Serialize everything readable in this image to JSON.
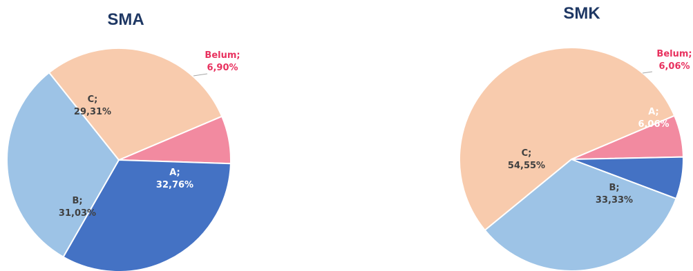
{
  "chart_data": [
    {
      "type": "pie",
      "title": "SMA",
      "slices": [
        {
          "label": "Belum",
          "display": "6,90%",
          "value": 6.9,
          "color": "#f28aa0",
          "label_color": "#e8325f"
        },
        {
          "label": "A",
          "display": "32,76%",
          "value": 32.76,
          "color": "#4472c4",
          "label_color": "#ffffff"
        },
        {
          "label": "B",
          "display": "31,03%",
          "value": 31.03,
          "color": "#9dc3e6",
          "label_color": "#404040"
        },
        {
          "label": "C",
          "display": "29,31%",
          "value": 29.31,
          "color": "#f8cbad",
          "label_color": "#404040"
        }
      ]
    },
    {
      "type": "pie",
      "title": "SMK",
      "slices": [
        {
          "label": "Belum",
          "display": "6,06%",
          "value": 6.06,
          "color": "#f28aa0",
          "label_color": "#e8325f"
        },
        {
          "label": "A",
          "display": "6,06%",
          "value": 6.06,
          "color": "#4472c4",
          "label_color": "#ffffff"
        },
        {
          "label": "B",
          "display": "33,33%",
          "value": 33.33,
          "color": "#9dc3e6",
          "label_color": "#404040"
        },
        {
          "label": "C",
          "display": "54,55%",
          "value": 54.55,
          "color": "#f8cbad",
          "label_color": "#404040"
        }
      ]
    }
  ],
  "colors": {
    "title": "#1f3864",
    "outside_label": "#e8325f",
    "leader_line": "#a6a6a6",
    "slice_border": "#ffffff"
  }
}
